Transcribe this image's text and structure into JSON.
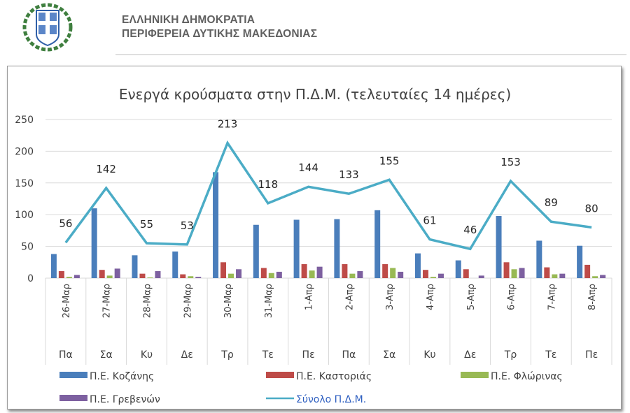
{
  "header": {
    "line1": "ΕΛΛΗΝΙΚΗ ΔΗΜΟΚΡΑΤΙΑ",
    "line2": "ΠΕΡΙΦΕΡΕΙΑ ΔΥΤΙΚΗΣ ΜΑΚΕΔΟΝΙΑΣ"
  },
  "chart_data": {
    "type": "bar",
    "title": "Ενεργά κρούσματα στην Π.Δ.Μ. (τελευταίες 14 ημέρες)",
    "ylim": [
      0,
      250
    ],
    "yticks": [
      0,
      50,
      100,
      150,
      200,
      250
    ],
    "categories": [
      "26-Μαρ",
      "27-Μαρ",
      "28-Μαρ",
      "29-Μαρ",
      "30-Μαρ",
      "31-Μαρ",
      "1-Απρ",
      "2-Απρ",
      "3-Απρ",
      "4-Απρ",
      "5-Απρ",
      "6-Απρ",
      "7-Απρ",
      "8-Απρ"
    ],
    "days": [
      "Πα",
      "Σα",
      "Κυ",
      "Δε",
      "Τρ",
      "Τε",
      "Πε",
      "Πα",
      "Σα",
      "Κυ",
      "Δε",
      "Τρ",
      "Τε",
      "Πε"
    ],
    "series": [
      {
        "name": "Π.Ε. Κοζάνης",
        "type": "bar",
        "color": "#4a7ebb",
        "values": [
          38,
          110,
          36,
          42,
          167,
          84,
          92,
          93,
          107,
          39,
          28,
          98,
          59,
          51
        ]
      },
      {
        "name": "Π.Ε. Καστοριάς",
        "type": "bar",
        "color": "#be4b48",
        "values": [
          11,
          13,
          7,
          6,
          25,
          16,
          22,
          22,
          22,
          13,
          14,
          25,
          17,
          21
        ]
      },
      {
        "name": "Π.Ε. Φλώρινας",
        "type": "bar",
        "color": "#98b954",
        "values": [
          2,
          4,
          1,
          3,
          7,
          8,
          12,
          7,
          16,
          2,
          0,
          14,
          6,
          3
        ]
      },
      {
        "name": "Π.Ε. Γρεβενών",
        "type": "bar",
        "color": "#7d60a0",
        "values": [
          5,
          15,
          11,
          2,
          14,
          10,
          18,
          11,
          10,
          7,
          4,
          16,
          7,
          5
        ]
      },
      {
        "name": "Σύνολο Π.Δ.Μ.",
        "type": "line",
        "color": "#4bacc6",
        "values": [
          56,
          142,
          55,
          53,
          213,
          118,
          144,
          133,
          155,
          61,
          46,
          153,
          89,
          80
        ]
      }
    ],
    "legend": "bottom",
    "grid": true
  }
}
